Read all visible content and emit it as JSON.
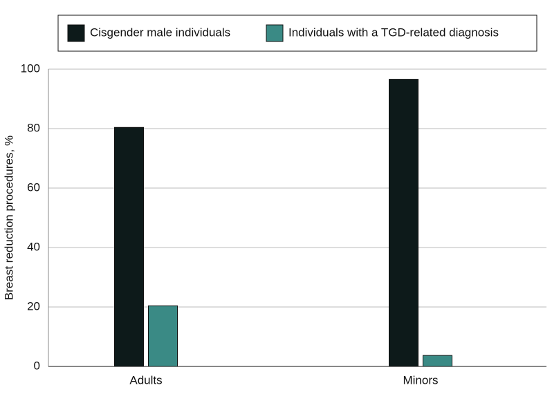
{
  "chart_data": {
    "type": "bar",
    "categories": [
      "Adults",
      "Minors"
    ],
    "series": [
      {
        "name": "Cisgender male individuals",
        "color": "#0d1a1a",
        "values": [
          80.4,
          96.6
        ]
      },
      {
        "name": "Individuals with a TGD-related diagnosis",
        "color": "#3a8a85",
        "values": [
          20.4,
          3.7
        ]
      }
    ],
    "y_label": "Breast reduction procedures, %",
    "ylim": [
      0,
      100
    ],
    "yticks": [
      0,
      20,
      40,
      60,
      80,
      100
    ],
    "grid": true,
    "legend": "top"
  }
}
